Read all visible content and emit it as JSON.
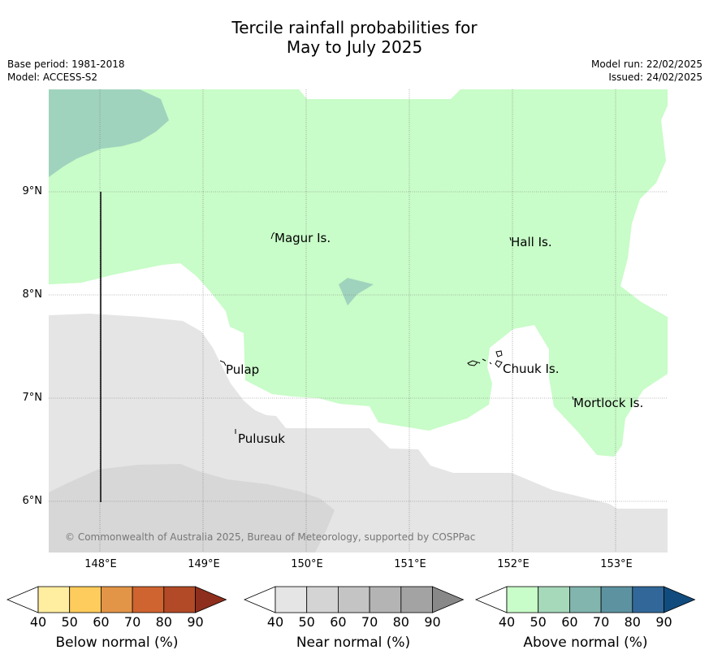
{
  "title": {
    "line1": "Tercile rainfall probabilities for",
    "line2": "May to July 2025"
  },
  "meta_left": {
    "base_period": "Base period: 1981-2018",
    "model": "Model: ACCESS-S2"
  },
  "meta_right": {
    "model_run": "Model run: 22/02/2025",
    "issued": "Issued: 24/02/2025"
  },
  "map": {
    "lat_ticks": [
      "9°N",
      "8°N",
      "7°N",
      "6°N"
    ],
    "lon_ticks": [
      "148°E",
      "149°E",
      "150°E",
      "151°E",
      "152°E",
      "153°E"
    ],
    "places": [
      {
        "name": "Magur Is."
      },
      {
        "name": "Hall Is."
      },
      {
        "name": "Pulap"
      },
      {
        "name": "Chuuk Is."
      },
      {
        "name": "Mortlock Is."
      },
      {
        "name": "Pulusuk"
      }
    ],
    "copyright": "© Commonwealth of Australia 2025, Bureau of Meteorology, supported by COSPPac"
  },
  "legends": [
    {
      "title": "Below normal (%)",
      "ticks": [
        "40",
        "50",
        "60",
        "70",
        "80",
        "90"
      ],
      "colors": [
        "#ffeda0",
        "#fecc5c",
        "#e39547",
        "#cf6430",
        "#b24a27",
        "#8e2e1c"
      ]
    },
    {
      "title": "Near normal (%)",
      "ticks": [
        "40",
        "50",
        "60",
        "70",
        "80",
        "90"
      ],
      "colors": [
        "#e5e5e5",
        "#d4d4d4",
        "#c4c4c4",
        "#b4b4b4",
        "#a3a3a3",
        "#888888"
      ]
    },
    {
      "title": "Above normal (%)",
      "ticks": [
        "40",
        "50",
        "60",
        "70",
        "80",
        "90"
      ],
      "colors": [
        "#c8fcc8",
        "#a6d8ba",
        "#81b5ae",
        "#5d93a1",
        "#326899",
        "#124c7e"
      ]
    }
  ],
  "colors": {
    "above_40": "#c8fcc8",
    "above_50": "#9fd3bd",
    "near_40": "#e5e5e5",
    "near_50": "#d7d7d7"
  }
}
